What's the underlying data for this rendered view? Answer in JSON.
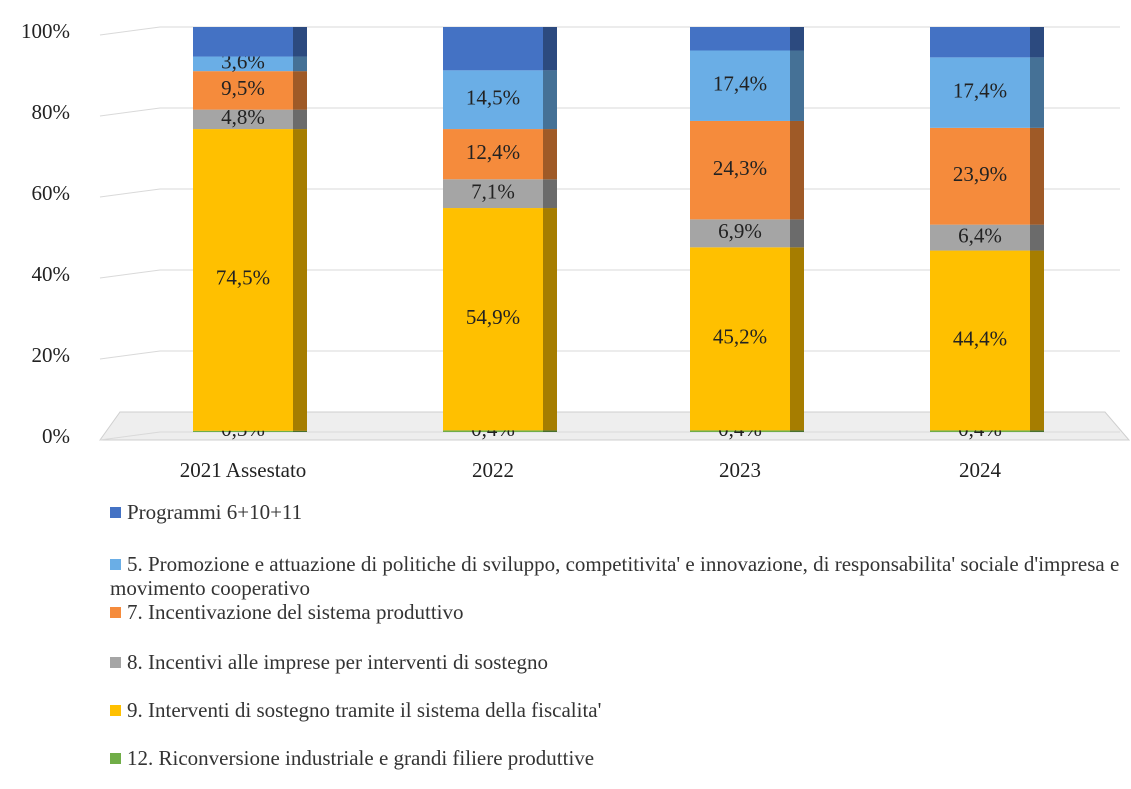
{
  "chart_data": {
    "type": "bar",
    "stacked": true,
    "categories": [
      "2021 Assestato",
      "2022",
      "2023",
      "2024"
    ],
    "ylim": [
      0,
      100
    ],
    "yticks": [
      {
        "value": 0,
        "label": "0%"
      },
      {
        "value": 20,
        "label": "20%"
      },
      {
        "value": 40,
        "label": "40%"
      },
      {
        "value": 60,
        "label": "60%"
      },
      {
        "value": 80,
        "label": "80%"
      },
      {
        "value": 100,
        "label": "100%"
      }
    ],
    "grid": true,
    "legend": "bottom",
    "series": [
      {
        "name": "12. Riconversione industriale e grandi filiere produttive",
        "color": "#70ad47",
        "values": [
          0.3,
          0.4,
          0.4,
          0.4
        ],
        "value_labels": [
          "0,3%",
          "0,4%",
          "0,4%",
          "0,4%"
        ]
      },
      {
        "name": "9. Interventi di sostegno tramite il sistema della fiscalita'",
        "color": "#ffc000",
        "values": [
          74.5,
          54.9,
          45.2,
          44.4
        ],
        "value_labels": [
          "74,5%",
          "54,9%",
          "45,2%",
          "44,4%"
        ]
      },
      {
        "name": "8. Incentivi alle imprese per interventi di sostegno",
        "color": "#a5a5a5",
        "values": [
          4.8,
          7.1,
          6.9,
          6.4
        ],
        "value_labels": [
          "4,8%",
          "7,1%",
          "6,9%",
          "6,4%"
        ]
      },
      {
        "name": "7. Incentivazione del sistema produttivo",
        "color": "#f58b3c",
        "values": [
          9.5,
          12.4,
          24.3,
          23.9
        ],
        "value_labels": [
          "9,5%",
          "12,4%",
          "24,3%",
          "23,9%"
        ]
      },
      {
        "name": "5. Promozione e attuazione di politiche di sviluppo, competitivita' e innovazione, di responsabilita' sociale d'impresa e movimento cooperativo",
        "color": "#6aaee6",
        "values": [
          3.6,
          14.5,
          17.4,
          17.4
        ],
        "value_labels": [
          "3,6%",
          "14,5%",
          "17,4%",
          "17,4%"
        ]
      },
      {
        "name": "Programmi 6+10+11",
        "color": "#4472c4",
        "values": [
          7.3,
          10.7,
          5.8,
          7.5
        ]
      }
    ]
  }
}
